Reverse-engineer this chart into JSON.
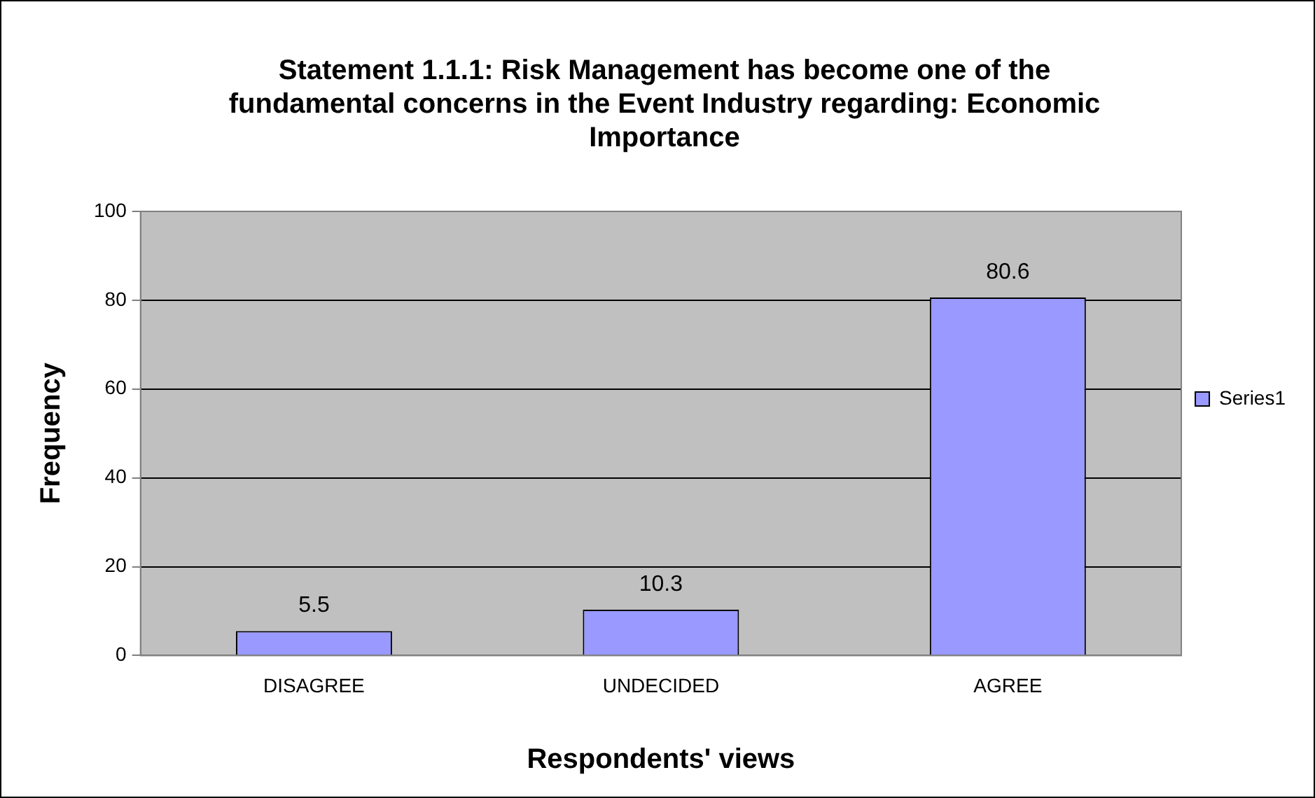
{
  "chart_data": {
    "type": "bar",
    "title": "Statement 1.1.1: Risk Management has become one of the fundamental concerns in the Event Industry regarding: Economic Importance",
    "xlabel": "Respondents' views",
    "ylabel": "Frequency",
    "categories": [
      "DISAGREE",
      "UNDECIDED",
      "AGREE"
    ],
    "series": [
      {
        "name": "Series1",
        "color": "#9999ff",
        "values": [
          5.5,
          10.3,
          80.6
        ]
      }
    ],
    "ylim": [
      0,
      100
    ],
    "yticks": [
      0,
      20,
      40,
      60,
      80,
      100
    ],
    "grid": "y",
    "legend": "right",
    "data_labels": true
  }
}
